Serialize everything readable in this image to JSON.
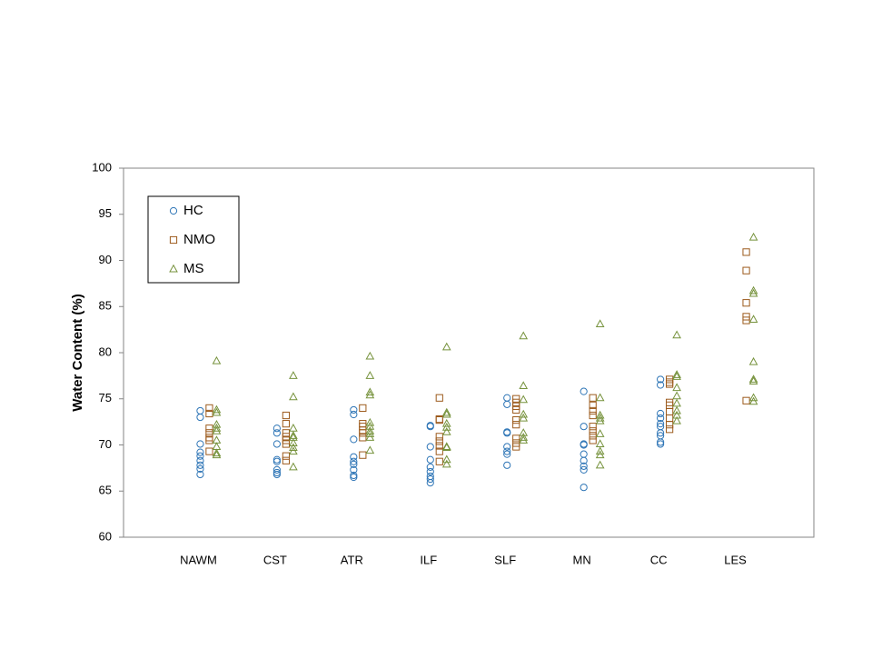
{
  "chart_data": {
    "type": "scatter",
    "y_label": "Water Content (%)",
    "categories": [
      "NAWM",
      "CST",
      "ATR",
      "ILF",
      "SLF",
      "MN",
      "CC",
      "LES"
    ],
    "ylim": [
      60,
      100
    ],
    "yticks": [
      60,
      65,
      70,
      75,
      80,
      85,
      90,
      95,
      100
    ],
    "legend": "upper left",
    "series": [
      {
        "name": "HC",
        "color": "#2e75b6",
        "marker": "circle",
        "values": [
          [
            73.7,
            73.0,
            70.1,
            69.2,
            68.8,
            68.3,
            67.8,
            67.4,
            66.8
          ],
          [
            71.8,
            71.3,
            70.1,
            68.4,
            68.2,
            67.3,
            67.0,
            66.8
          ],
          [
            73.8,
            73.3,
            70.6,
            68.7,
            68.2,
            67.9,
            67.3,
            66.7,
            66.5
          ],
          [
            72.1,
            72.0,
            69.8,
            68.4,
            67.6,
            67.1,
            66.6,
            66.3,
            65.9
          ],
          [
            75.1,
            74.4,
            71.4,
            71.3,
            69.8,
            69.3,
            69.0,
            67.8
          ],
          [
            75.8,
            72.0,
            70.1,
            70.0,
            69.0,
            68.3,
            67.7,
            67.3,
            65.4
          ],
          [
            77.1,
            76.5,
            73.4,
            72.9,
            72.3,
            72.0,
            71.3,
            71.0,
            70.3,
            70.1
          ],
          []
        ]
      },
      {
        "name": "NMO",
        "color": "#9c5a1c",
        "marker": "square",
        "values": [
          [
            74.0,
            73.4,
            71.8,
            71.3,
            70.8,
            70.5,
            69.3
          ],
          [
            73.2,
            72.3,
            71.3,
            70.9,
            70.5,
            70.1,
            68.8,
            68.3
          ],
          [
            74.0,
            72.3,
            72.0,
            71.6,
            71.3,
            70.8,
            68.9
          ],
          [
            75.1,
            72.8,
            72.7,
            70.9,
            70.4,
            69.9,
            69.3,
            68.2
          ],
          [
            75.0,
            74.6,
            74.2,
            73.8,
            72.7,
            72.2,
            70.7,
            70.2,
            69.8
          ],
          [
            75.1,
            74.3,
            73.7,
            73.2,
            72.0,
            71.5,
            71.0,
            70.5
          ],
          [
            77.1,
            76.8,
            76.6,
            74.6,
            74.3,
            73.6,
            72.9,
            72.2,
            71.7
          ],
          [
            90.9,
            88.9,
            85.4,
            83.9,
            83.5,
            74.8
          ]
        ]
      },
      {
        "name": "MS",
        "color": "#76923c",
        "marker": "triangle",
        "values": [
          [
            79.1,
            73.8,
            73.5,
            72.2,
            71.8,
            71.5,
            70.5,
            69.8,
            69.1,
            68.9
          ],
          [
            77.5,
            75.2,
            71.8,
            71.0,
            70.8,
            70.2,
            69.7,
            69.3,
            67.6
          ],
          [
            79.6,
            77.5,
            75.7,
            75.4,
            72.4,
            72.0,
            71.5,
            71.2,
            70.8,
            69.4
          ],
          [
            80.6,
            73.5,
            73.3,
            72.3,
            71.9,
            71.4,
            69.8,
            69.7,
            68.4,
            67.9
          ],
          [
            81.8,
            76.4,
            74.9,
            73.3,
            72.9,
            71.3,
            70.8,
            70.5
          ],
          [
            83.1,
            75.1,
            73.2,
            72.9,
            72.6,
            71.2,
            70.1,
            69.3,
            68.9,
            67.8
          ],
          [
            81.9,
            77.6,
            77.4,
            76.2,
            75.3,
            74.5,
            73.7,
            73.2,
            72.6
          ],
          [
            92.5,
            86.7,
            86.4,
            83.6,
            79.0,
            77.1,
            76.9,
            75.1,
            74.7
          ]
        ]
      }
    ]
  }
}
